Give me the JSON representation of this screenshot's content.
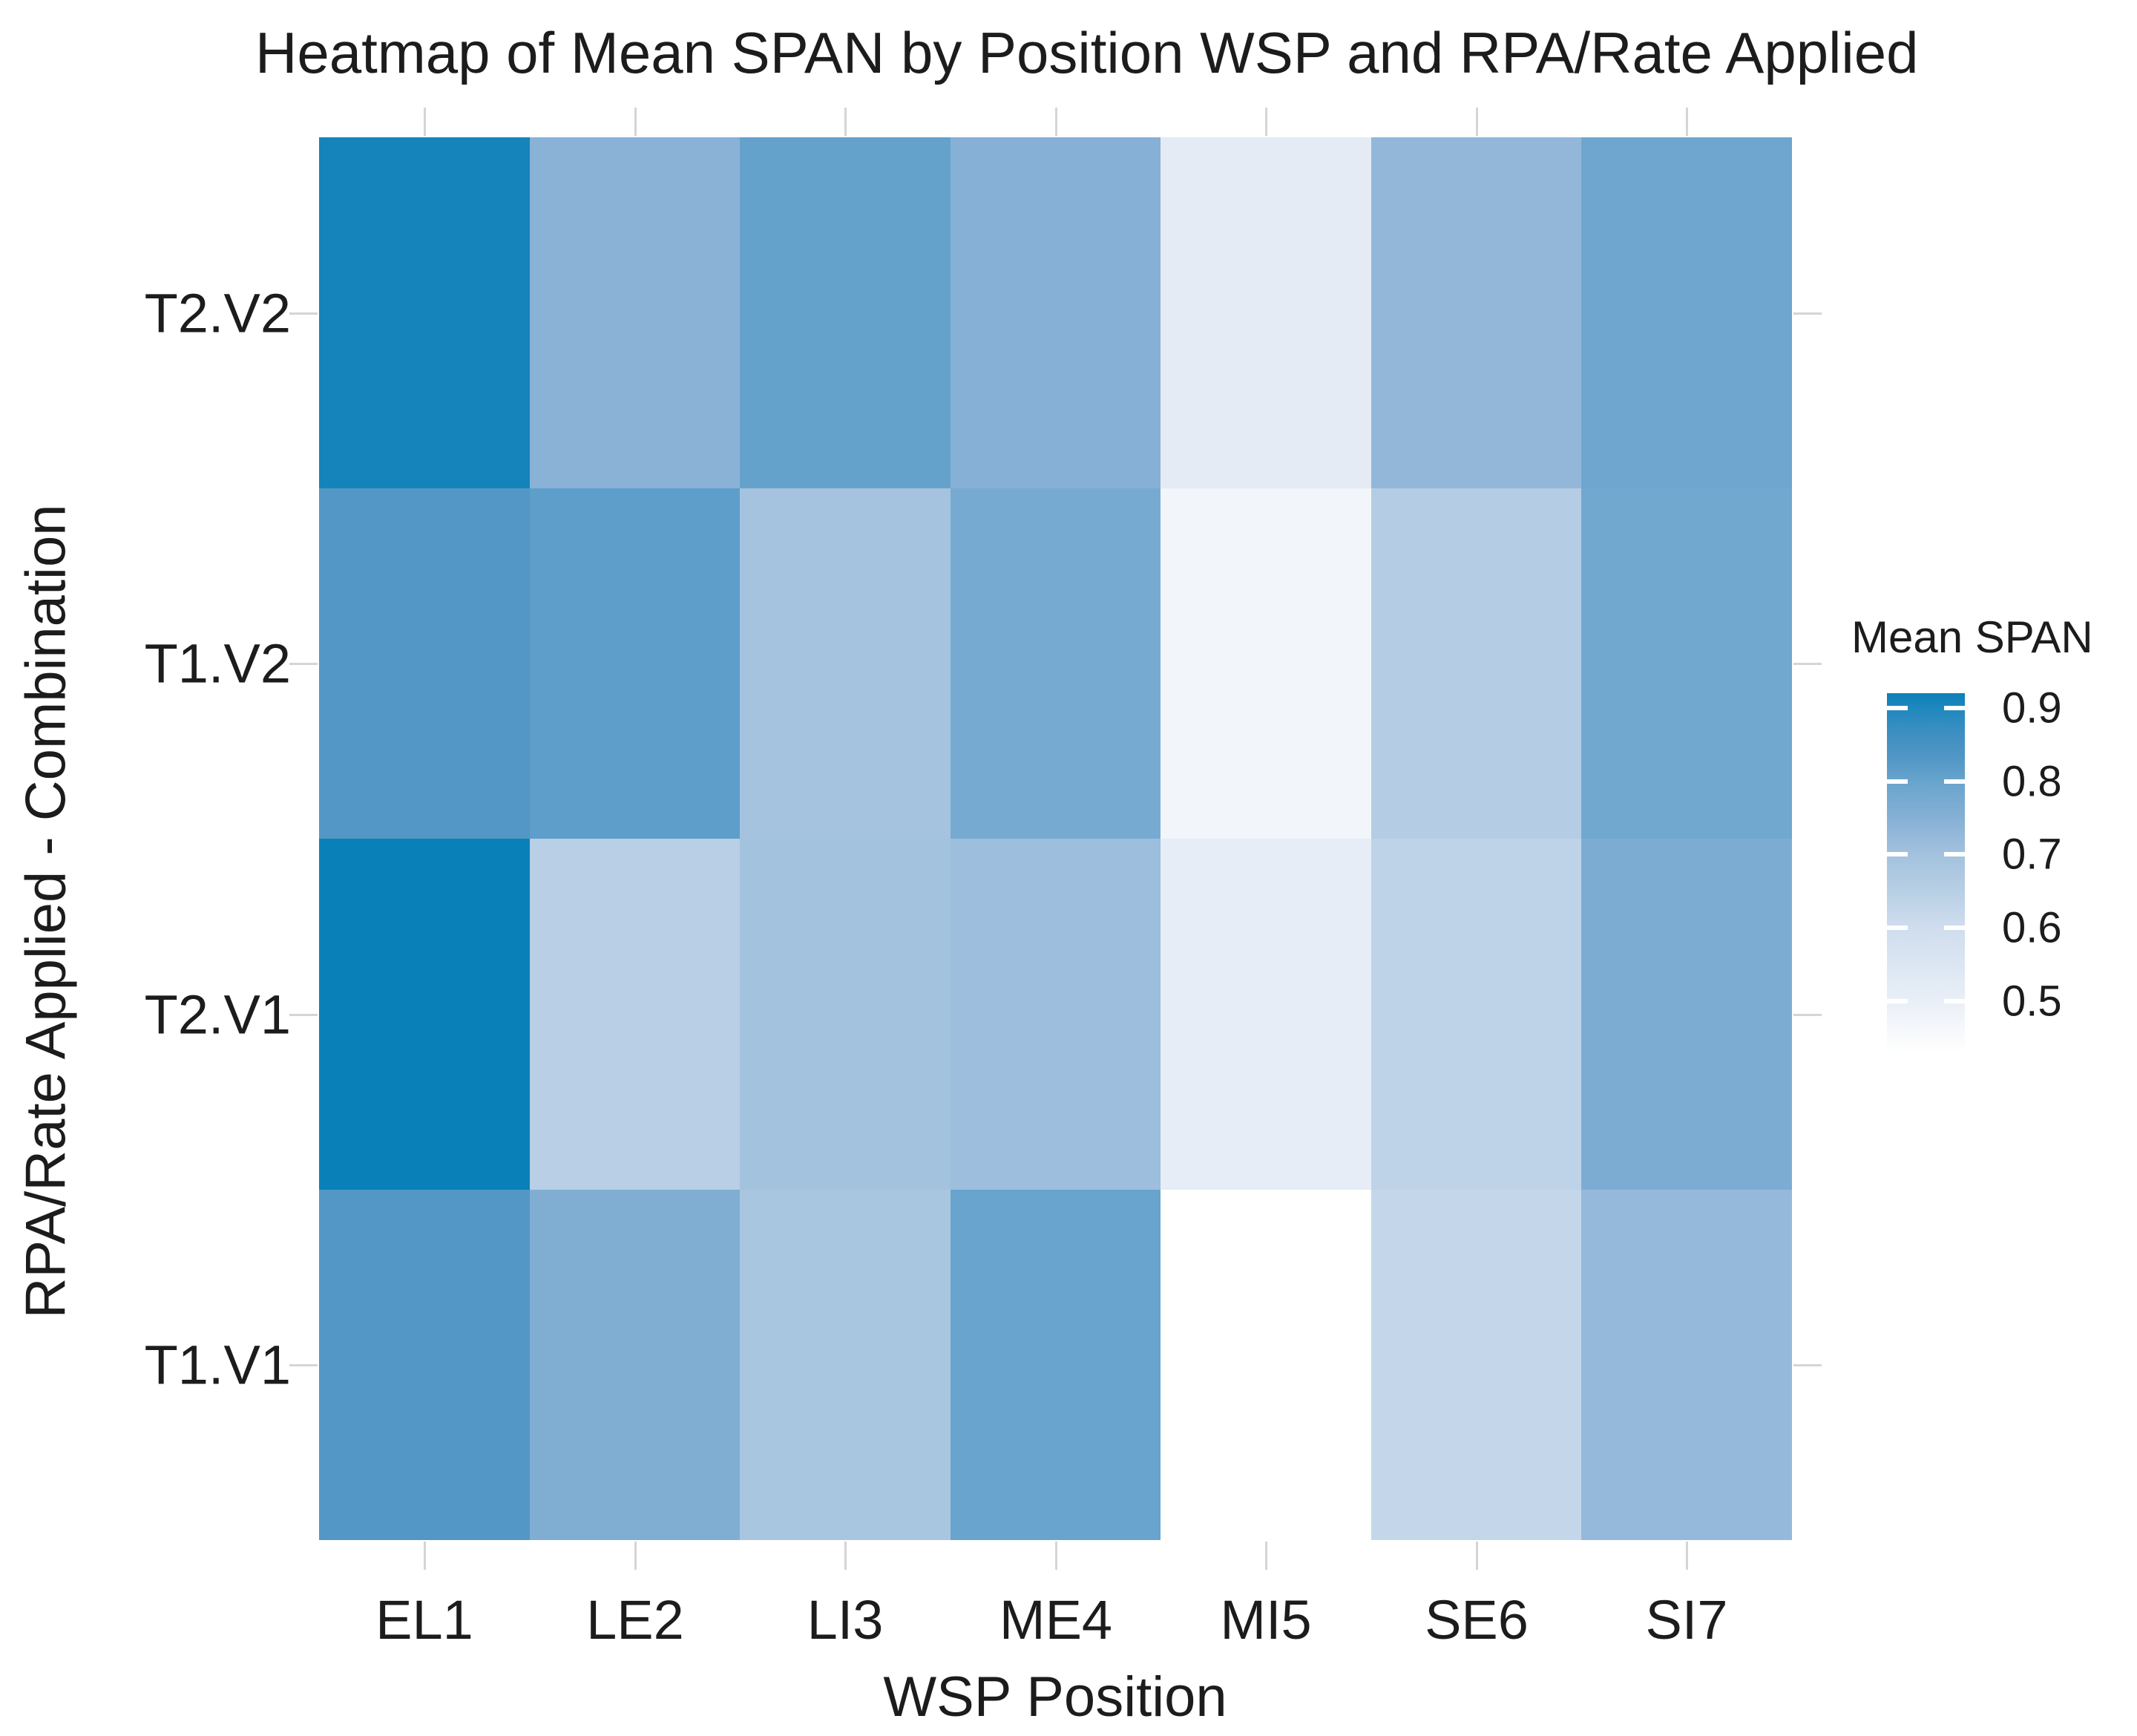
{
  "chart_data": {
    "type": "heatmap",
    "title": "Heatmap of Mean SPAN by Position WSP and RPA/Rate Applied",
    "xlabel": "WSP Position",
    "ylabel": "RPA/Rate Applied - Combination",
    "x_categories": [
      "EL1",
      "LE2",
      "LI3",
      "ME4",
      "MI5",
      "SE6",
      "SI7"
    ],
    "y_categories": [
      "T2.V2",
      "T1.V2",
      "T2.V1",
      "T1.V1"
    ],
    "values_note": "rows ordered top to bottom matching y_categories; null = missing cell (drawn white)",
    "values": [
      [
        0.91,
        0.745,
        0.805,
        0.75,
        0.52,
        0.73,
        0.79
      ],
      [
        0.83,
        0.815,
        0.695,
        0.775,
        0.47,
        0.66,
        0.785
      ],
      [
        0.92,
        0.65,
        0.7,
        0.71,
        0.51,
        0.635,
        0.765
      ],
      [
        0.83,
        0.76,
        0.685,
        0.8,
        null,
        0.625,
        0.725
      ]
    ],
    "legend": {
      "title": "Mean SPAN",
      "tick_labels": [
        "0.9",
        "0.8",
        "0.7",
        "0.6",
        "0.5"
      ],
      "tick_values": [
        0.9,
        0.8,
        0.7,
        0.6,
        0.5
      ],
      "domain_min": 0.43,
      "domain_max": 0.92
    },
    "color_scale": {
      "low_color": "#ffffff",
      "high_color": "#0a80b8",
      "stops": [
        {
          "value": 0.43,
          "color": "#ffffff"
        },
        {
          "value": 0.5,
          "color": "#e9eff7"
        },
        {
          "value": 0.6,
          "color": "#cfddee"
        },
        {
          "value": 0.65,
          "color": "#b8cfe5"
        },
        {
          "value": 0.7,
          "color": "#a3c2de"
        },
        {
          "value": 0.75,
          "color": "#86b0d5"
        },
        {
          "value": 0.8,
          "color": "#68a4cd"
        },
        {
          "value": 0.83,
          "color": "#5397c6"
        },
        {
          "value": 0.87,
          "color": "#3a8ec1"
        },
        {
          "value": 0.9,
          "color": "#1e88be"
        },
        {
          "value": 0.92,
          "color": "#0a80b8"
        }
      ]
    },
    "grid": "off",
    "tick_color": "#d5d5d5",
    "legend_position": "right"
  }
}
